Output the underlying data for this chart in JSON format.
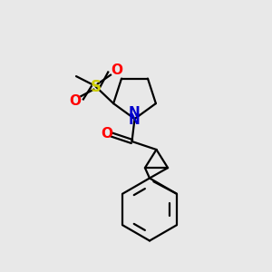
{
  "bg_color": "#e8e8e8",
  "bond_color": "#000000",
  "N_color": "#0000cc",
  "O_color": "#ff0000",
  "S_color": "#cccc00",
  "lw": 1.6,
  "xlim": [
    0,
    10
  ],
  "ylim": [
    0,
    10
  ]
}
